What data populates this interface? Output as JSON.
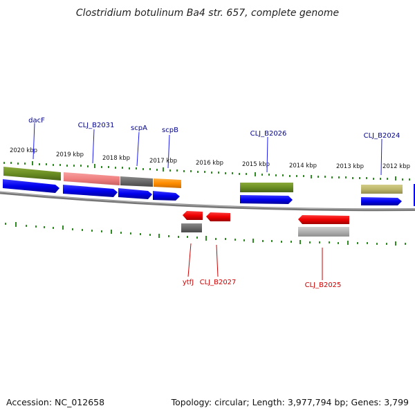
{
  "title": "Clostridium botulinum Ba4 str. 657, complete genome",
  "footer": {
    "accession": "Accession: NC_012658",
    "summary": "Topology: circular; Length: 3,977,794 bp; Genes: 3,799"
  },
  "kbp_labels": [
    "2020 kbp",
    "2019 kbp",
    "2018 kbp",
    "2017 kbp",
    "2016 kbp",
    "2015 kbp",
    "2014 kbp",
    "2013 kbp",
    "2012 kbp"
  ],
  "forward_genes": [
    {
      "label": "dacF",
      "color": "#00008b"
    },
    {
      "label": "CLJ_B2031",
      "color": "#00008b"
    },
    {
      "label": "scpA",
      "color": "#00008b"
    },
    {
      "label": "scpB",
      "color": "#00008b"
    },
    {
      "label": "CLJ_B2026",
      "color": "#00008b"
    },
    {
      "label": "CLJ_B2024",
      "color": "#00008b"
    }
  ],
  "reverse_genes": [
    {
      "label": "ytfJ",
      "color": "#cc0000"
    },
    {
      "label": "CLJ_B2027",
      "color": "#cc0000"
    },
    {
      "label": "CLJ_B2025",
      "color": "#cc0000"
    }
  ],
  "colors": {
    "forward_cds": "#0000ee",
    "reverse_cds": "#ee0000",
    "backbone": "#888888",
    "tick": "#2e8b22",
    "olive_feature": "#6b8e23",
    "pink_feature": "#f08080",
    "gray_feature": "#696969",
    "orange_feature": "#ff8c00",
    "khaki_feature": "#bdb76b",
    "light_gray_feature": "#b0b0b0"
  }
}
